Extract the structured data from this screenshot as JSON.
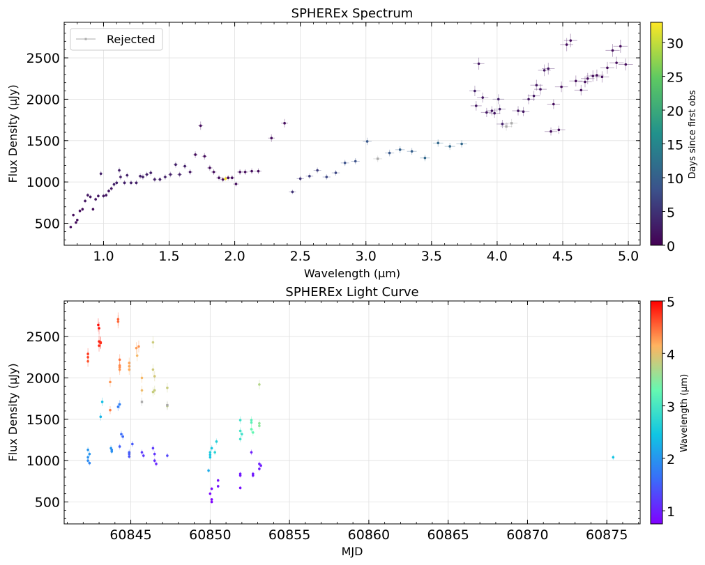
{
  "chart_data": [
    {
      "type": "scatter",
      "title": "SPHEREx Spectrum",
      "xlabel": "Wavelength (μm)",
      "ylabel": "Flux Density (μJy)",
      "xlim": [
        0.7,
        5.09
      ],
      "ylim": [
        235,
        2930
      ],
      "xticks": [
        1.0,
        1.5,
        2.0,
        2.5,
        3.0,
        3.5,
        4.0,
        4.5,
        5.0
      ],
      "xtick_labels": [
        "1.0",
        "1.5",
        "2.0",
        "2.5",
        "3.0",
        "3.5",
        "4.0",
        "4.5",
        "5.0"
      ],
      "yticks": [
        500,
        1000,
        1500,
        2000,
        2500
      ],
      "ytick_labels": [
        "500",
        "1000",
        "1500",
        "2000",
        "2500"
      ],
      "grid": true,
      "legend": {
        "position": "top-left",
        "entries": [
          {
            "label": "Rejected",
            "color": "#aaaaaa"
          }
        ]
      },
      "colorbar": {
        "label": "Days since first obs",
        "range": [
          0,
          33
        ],
        "ticks": [
          0,
          5,
          10,
          15,
          20,
          25,
          30
        ],
        "tick_labels": [
          "0",
          "5",
          "10",
          "15",
          "20",
          "25",
          "30"
        ],
        "colormap": "viridis"
      },
      "series": [
        {
          "status": "accepted",
          "x": [
            0.75,
            0.77,
            0.79,
            0.8,
            0.82,
            0.84,
            0.86,
            0.88,
            0.9,
            0.92,
            0.94,
            0.96,
            0.98,
            1.0,
            1.02,
            1.04,
            1.06,
            1.08,
            1.1,
            1.12,
            1.13,
            1.16,
            1.18,
            1.21,
            1.25,
            1.28,
            1.3,
            1.33,
            1.36,
            1.39,
            1.43,
            1.47,
            1.51,
            1.55,
            1.58,
            1.62,
            1.66,
            1.7,
            1.74,
            1.77,
            1.81,
            1.84,
            1.88,
            1.91,
            1.93,
            1.95,
            1.98,
            2.01,
            2.04,
            2.08,
            2.13,
            2.18,
            2.28,
            2.38,
            2.44,
            2.5,
            2.57,
            2.63,
            2.7,
            2.77,
            2.84,
            2.92,
            3.01,
            3.18,
            3.26,
            3.35,
            3.45,
            3.55,
            3.64,
            3.73,
            3.83,
            3.84,
            3.86,
            3.89,
            3.92,
            3.96,
            3.98,
            4.01,
            4.02,
            4.04,
            4.16,
            4.2,
            4.24,
            4.28,
            4.3,
            4.33,
            4.36,
            4.39,
            4.41,
            4.43,
            4.47,
            4.49,
            4.53,
            4.56,
            4.6,
            4.64,
            4.67,
            4.69,
            4.73,
            4.76,
            4.8,
            4.84,
            4.88,
            4.91,
            4.94,
            4.98
          ],
          "y": [
            455,
            600,
            510,
            540,
            650,
            670,
            770,
            840,
            820,
            670,
            790,
            830,
            1100,
            830,
            840,
            890,
            920,
            970,
            990,
            1140,
            1060,
            990,
            1080,
            990,
            990,
            1070,
            1060,
            1090,
            1110,
            1030,
            1030,
            1060,
            1090,
            1210,
            1090,
            1190,
            1120,
            1330,
            1680,
            1310,
            1170,
            1120,
            1050,
            1030,
            1040,
            1050,
            1050,
            975,
            1120,
            1120,
            1130,
            1130,
            1530,
            1710,
            880,
            1040,
            1070,
            1140,
            1060,
            1110,
            1230,
            1250,
            1490,
            1350,
            1390,
            1370,
            1290,
            1470,
            1430,
            1460,
            2100,
            1920,
            2430,
            2020,
            1840,
            1860,
            1830,
            2000,
            1880,
            1700,
            1860,
            1850,
            2000,
            2040,
            2170,
            2120,
            2350,
            2370,
            1610,
            1940,
            1630,
            2150,
            2660,
            2710,
            2220,
            2110,
            2210,
            2250,
            2280,
            2290,
            2270,
            2380,
            2590,
            2440,
            2640,
            2420
          ],
          "days": [
            1,
            1,
            1,
            1,
            1,
            1,
            2,
            2,
            2,
            1,
            2,
            2,
            3,
            2,
            2,
            2,
            2,
            3,
            3,
            3,
            3,
            3,
            3,
            3,
            3,
            3,
            3,
            3,
            3,
            3,
            3,
            3,
            3,
            3,
            3,
            3,
            2,
            1,
            1,
            1,
            1,
            1,
            1,
            1,
            33,
            0,
            1,
            1,
            1,
            1,
            1,
            1,
            1,
            1,
            5,
            5,
            6,
            6,
            7,
            7,
            8,
            8,
            9,
            9,
            10,
            10,
            11,
            11,
            11,
            11,
            3,
            2,
            2,
            2,
            2,
            2,
            2,
            3,
            3,
            3,
            2,
            2,
            2,
            2,
            2,
            2,
            2,
            2,
            1,
            1,
            1,
            1,
            1,
            1,
            1,
            1,
            1,
            1,
            1,
            1,
            1,
            1,
            1,
            1,
            1,
            1
          ]
        },
        {
          "name": "Rejected",
          "status": "rejected",
          "x": [
            3.09,
            4.07,
            4.11
          ],
          "y": [
            1280,
            1670,
            1710
          ]
        }
      ]
    },
    {
      "type": "scatter",
      "title": "SPHEREx Light Curve",
      "xlabel": "MJD",
      "ylabel": "Flux Density (μJy)",
      "xlim": [
        60840.8,
        60877.1
      ],
      "ylim": [
        235,
        2930
      ],
      "xticks": [
        60845,
        60850,
        60855,
        60860,
        60865,
        60870,
        60875
      ],
      "xtick_labels": [
        "60845",
        "60850",
        "60855",
        "60860",
        "60865",
        "60870",
        "60875"
      ],
      "yticks": [
        500,
        1000,
        1500,
        2000,
        2500
      ],
      "ytick_labels": [
        "500",
        "1000",
        "1500",
        "2000",
        "2500"
      ],
      "grid": true,
      "colorbar": {
        "label": "Wavelength (μm)",
        "range": [
          0.75,
          5.0
        ],
        "ticks": [
          1,
          2,
          3,
          4,
          5
        ],
        "tick_labels": [
          "1",
          "2",
          "3",
          "4",
          "5"
        ],
        "colormap": "rainbow"
      },
      "series": [
        {
          "status": "accepted",
          "x": [
            60842.3,
            60842.3,
            60842.3,
            60842.3,
            60842.3,
            60842.3,
            60842.4,
            60842.4,
            60842.95,
            60843.0,
            60843.0,
            60843.0,
            60843.1,
            60843.1,
            60843.2,
            60843.1,
            60843.7,
            60843.7,
            60843.75,
            60843.8,
            60843.8,
            60844.2,
            60844.2,
            60844.3,
            60844.3,
            60844.3,
            60844.3,
            60844.3,
            60844.2,
            60844.4,
            60844.5,
            60844.3,
            60844.9,
            60844.9,
            60844.9,
            60844.9,
            60844.9,
            60844.9,
            60845.1,
            60845.5,
            60845.35,
            60845.4,
            60845.7,
            60845.7,
            60845.7,
            60845.8,
            60846.4,
            60846.4,
            60846.5,
            60846.5,
            60846.4,
            60846.4,
            60846.5,
            60846.5,
            60846.6,
            60847.3,
            60847.3,
            60847.3,
            60849.9,
            60850.0,
            60850.0,
            60850.0,
            60850.1,
            60850.1,
            60850.0,
            60850.1,
            60850.1,
            60850.4,
            60850.3,
            60850.5,
            60850.5,
            60851.9,
            60851.9,
            60852.0,
            60851.9,
            60851.9,
            60851.9,
            60851.9,
            60852.6,
            60852.6,
            60852.6,
            60852.7,
            60852.6,
            60852.7,
            60852.7,
            60853.1,
            60853.1,
            60853.1,
            60853.1,
            60853.1,
            60853.2,
            60875.4
          ],
          "y": [
            2290,
            2250,
            2200,
            1130,
            1040,
            1000,
            970,
            1080,
            2640,
            2600,
            2440,
            2390,
            2430,
            2420,
            1710,
            1530,
            1950,
            1610,
            1150,
            1110,
            1130,
            2710,
            2680,
            2220,
            2150,
            2130,
            2100,
            1680,
            1650,
            1320,
            1290,
            1170,
            1050,
            1080,
            1100,
            2180,
            2140,
            2100,
            1200,
            2380,
            2360,
            2270,
            2000,
            1850,
            1100,
            1060,
            2430,
            2100,
            2020,
            1850,
            1830,
            1150,
            1080,
            1000,
            960,
            1880,
            1660,
            1060,
            880,
            1040,
            1070,
            1100,
            1150,
            660,
            600,
            530,
            500,
            1230,
            1100,
            760,
            690,
            1490,
            1360,
            1320,
            1260,
            840,
            820,
            670,
            1490,
            1460,
            1380,
            1340,
            1100,
            840,
            820,
            1920,
            1450,
            1420,
            960,
            900,
            940,
            1040
          ],
          "wavelength": [
            4.75,
            4.7,
            4.6,
            2.0,
            1.95,
            1.9,
            1.85,
            2.0,
            4.95,
            4.9,
            4.85,
            4.8,
            4.82,
            4.78,
            2.4,
            2.3,
            4.3,
            4.4,
            2.0,
            1.95,
            1.9,
            4.55,
            4.5,
            4.45,
            4.38,
            4.35,
            4.3,
            1.8,
            1.75,
            1.6,
            1.58,
            1.5,
            1.4,
            1.45,
            1.5,
            4.22,
            4.2,
            4.18,
            1.45,
            4.3,
            4.26,
            4.1,
            4.1,
            4.05,
            1.2,
            1.2,
            3.86,
            3.88,
            3.9,
            3.84,
            3.83,
            1.2,
            1.15,
            1.1,
            1.05,
            3.84,
            3.8,
            1.3,
            2.2,
            2.5,
            2.4,
            2.6,
            2.5,
            0.85,
            0.8,
            0.76,
            0.76,
            2.63,
            2.7,
            0.88,
            0.9,
            2.9,
            2.95,
            2.9,
            2.9,
            0.96,
            0.92,
            0.86,
            3.18,
            3.2,
            3.3,
            3.26,
            0.98,
            0.95,
            0.93,
            3.73,
            3.55,
            3.5,
            1.0,
            0.98,
            0.96,
            2.44
          ]
        },
        {
          "name": "Rejected",
          "status": "rejected",
          "x": [
            60845.7,
            60847.3
          ],
          "y": [
            1710,
            1670
          ]
        }
      ]
    }
  ]
}
